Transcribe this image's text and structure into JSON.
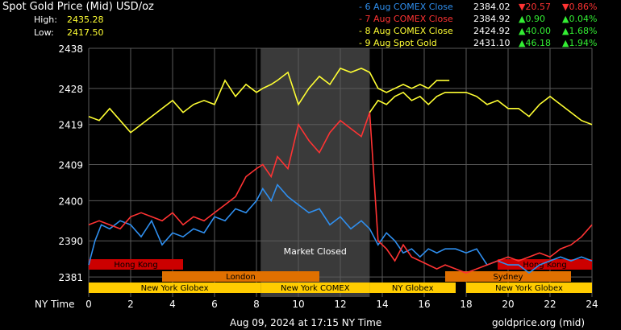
{
  "header": {
    "title": "Spot Gold Price (Mid) USD/oz",
    "high_label": "High:",
    "high_value": "2435.28",
    "low_label": "Low:",
    "low_value": "2417.50"
  },
  "legend": [
    {
      "label": "- 6 Aug COMEX Close",
      "price": "2384.02",
      "change": "▼20.57",
      "pct": "▼0.86%",
      "color": "#2f8fef",
      "dir": "down"
    },
    {
      "label": "- 7 Aug COMEX Close",
      "price": "2384.92",
      "change": "▲0.90",
      "pct": "▲0.04%",
      "color": "#ff3333",
      "dir": "up"
    },
    {
      "label": "- 8 Aug COMEX Close",
      "price": "2424.92",
      "change": "▲40.00",
      "pct": "▲1.68%",
      "color": "#ffff33",
      "dir": "up"
    },
    {
      "label": "- 9 Aug Spot Gold",
      "price": "2431.10",
      "change": "▲46.18",
      "pct": "▲1.94%",
      "color": "#ffff33",
      "dir": "up"
    }
  ],
  "chart_data": {
    "type": "line",
    "xlabel": "NY Time",
    "x_ticks": [
      0,
      2,
      4,
      6,
      8,
      10,
      12,
      14,
      16,
      18,
      20,
      22,
      24
    ],
    "y_ticks": [
      2381,
      2390,
      2400,
      2409,
      2419,
      2428,
      2438
    ],
    "xlim": [
      0,
      24
    ],
    "ylim": [
      2376,
      2438
    ],
    "market_closed": {
      "label": "Market Closed",
      "start": 8.2,
      "end": 13.4
    },
    "sessions": [
      {
        "name": "Hong Kong",
        "start": 0,
        "end": 4.5,
        "color": "#cc0000"
      },
      {
        "name": "Hong Kong",
        "start": 19.5,
        "end": 24,
        "color": "#cc0000"
      },
      {
        "name": "London",
        "start": 3.5,
        "end": 11,
        "color": "#e07000"
      },
      {
        "name": "Sydney",
        "start": 17,
        "end": 23,
        "color": "#e07000"
      },
      {
        "name": "New York Globex",
        "start": 0,
        "end": 8.2,
        "color": "#ffcc00"
      },
      {
        "name": "New York COMEX",
        "start": 8.2,
        "end": 13.4,
        "color": "#ffcc00"
      },
      {
        "name": "NY Globex",
        "start": 13.4,
        "end": 17.5,
        "color": "#ffcc00"
      },
      {
        "name": "New York Globex",
        "start": 18,
        "end": 24,
        "color": "#ffcc00"
      }
    ],
    "series": [
      {
        "name": "6 Aug COMEX Close",
        "color": "#2f8fef",
        "x": [
          0,
          0.3,
          0.6,
          1,
          1.5,
          2,
          2.5,
          3,
          3.5,
          4,
          4.5,
          5,
          5.5,
          6,
          6.5,
          7,
          7.5,
          8,
          8.3,
          8.7,
          9,
          9.5,
          10,
          10.5,
          11,
          11.5,
          12,
          12.5,
          13,
          13.4,
          13.8,
          14.2,
          14.6,
          15,
          15.4,
          15.8,
          16.2,
          16.6,
          17,
          17.5,
          18,
          18.5,
          19,
          19.5,
          20,
          20.5,
          21,
          21.5,
          22,
          22.5,
          23,
          23.5,
          24
        ],
        "y": [
          2384,
          2390,
          2394,
          2393,
          2395,
          2394,
          2391,
          2395,
          2389,
          2392,
          2391,
          2393,
          2392,
          2396,
          2395,
          2398,
          2397,
          2400,
          2403,
          2400,
          2404,
          2401,
          2399,
          2397,
          2398,
          2394,
          2396,
          2393,
          2395,
          2393,
          2389,
          2392,
          2390,
          2387,
          2388,
          2386,
          2388,
          2387,
          2388,
          2388,
          2387,
          2388,
          2384,
          2385,
          2384,
          2384,
          2382,
          2384,
          2385,
          2386,
          2385,
          2386,
          2385
        ]
      },
      {
        "name": "7 Aug COMEX Close",
        "color": "#ff3333",
        "x": [
          0,
          0.5,
          1,
          1.5,
          2,
          2.5,
          3,
          3.5,
          4,
          4.5,
          5,
          5.5,
          6,
          6.5,
          7,
          7.5,
          8,
          8.3,
          8.7,
          9,
          9.5,
          10,
          10.5,
          11,
          11.5,
          12,
          12.5,
          13,
          13.4,
          13.8,
          14.2,
          14.6,
          15,
          15.4,
          15.8,
          16.2,
          16.6,
          17,
          17.5,
          18,
          18.5,
          19,
          19.5,
          20,
          20.5,
          21,
          21.5,
          22,
          22.5,
          23,
          23.5,
          24
        ],
        "y": [
          2394,
          2395,
          2394,
          2393,
          2396,
          2397,
          2396,
          2395,
          2397,
          2394,
          2396,
          2395,
          2397,
          2399,
          2401,
          2406,
          2408,
          2409,
          2406,
          2411,
          2408,
          2419,
          2415,
          2412,
          2417,
          2420,
          2418,
          2416,
          2422,
          2390,
          2388,
          2385,
          2389,
          2386,
          2385,
          2384,
          2383,
          2384,
          2383,
          2382,
          2383,
          2384,
          2385,
          2386,
          2385,
          2386,
          2387,
          2386,
          2388,
          2389,
          2391,
          2394
        ]
      },
      {
        "name": "8 Aug COMEX Close",
        "color": "#ffff33",
        "x": [
          0,
          0.5,
          1,
          1.5,
          2,
          2.5,
          3,
          3.5,
          4,
          4.5,
          5,
          5.5,
          6,
          6.5,
          7,
          7.5,
          8,
          8.3,
          8.7,
          9,
          9.5,
          10,
          10.5,
          11,
          11.5,
          12,
          12.5,
          13,
          13.4,
          13.8,
          14.2,
          14.6,
          15,
          15.4,
          15.8,
          16.2,
          16.6,
          17,
          17.2
        ],
        "y": [
          2421,
          2420,
          2423,
          2420,
          2417,
          2419,
          2421,
          2423,
          2425,
          2422,
          2424,
          2425,
          2424,
          2430,
          2426,
          2429,
          2427,
          2428,
          2429,
          2430,
          2432,
          2424,
          2428,
          2431,
          2429,
          2433,
          2432,
          2433,
          2432,
          2428,
          2427,
          2428,
          2429,
          2428,
          2429,
          2428,
          2430,
          2430,
          2430
        ]
      },
      {
        "name": "9 Aug Spot Gold",
        "color": "#ffff33",
        "x": [
          13.4,
          13.8,
          14.2,
          14.6,
          15,
          15.4,
          15.8,
          16.2,
          16.6,
          17,
          17.5,
          18,
          18.5,
          19,
          19.5,
          20,
          20.5,
          21,
          21.5,
          22,
          22.5,
          23,
          23.5,
          24
        ],
        "y": [
          2422,
          2425,
          2424,
          2426,
          2427,
          2425,
          2426,
          2424,
          2426,
          2427,
          2427,
          2427,
          2426,
          2424,
          2425,
          2423,
          2423,
          2421,
          2424,
          2426,
          2424,
          2422,
          2420,
          2419
        ]
      }
    ]
  },
  "footer": {
    "timestamp": "Aug 09, 2024 at 17:15 NY Time",
    "source": "goldprice.org (mid)"
  }
}
